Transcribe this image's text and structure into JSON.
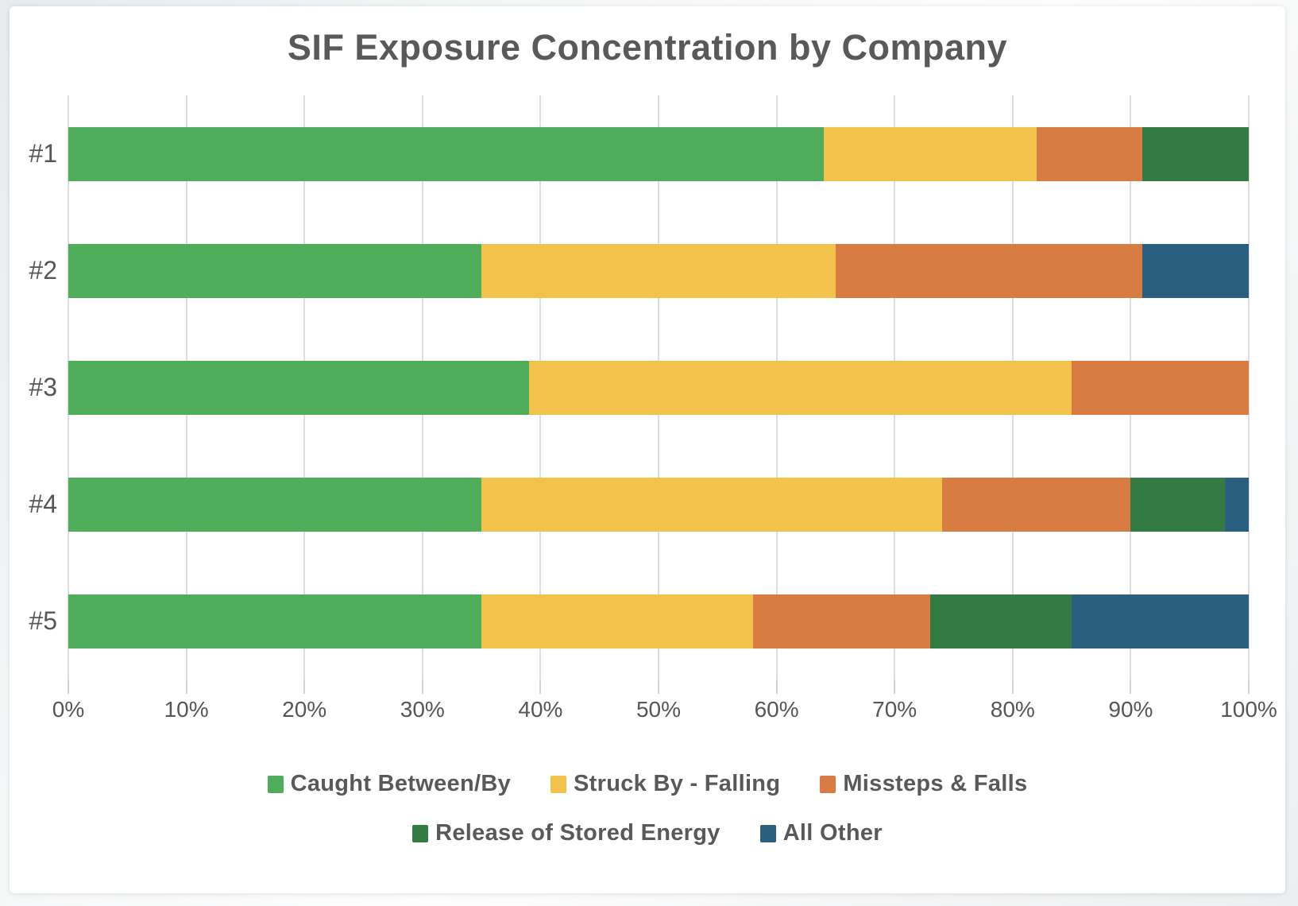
{
  "chart_data": {
    "type": "bar",
    "orientation": "horizontal",
    "stacked": true,
    "title": "SIF Exposure Concentration by Company",
    "categories": [
      "#1",
      "#2",
      "#3",
      "#4",
      "#5"
    ],
    "series": [
      {
        "name": "Caught Between/By",
        "color": "#4fad5c",
        "values": [
          64,
          35,
          39,
          35,
          35
        ]
      },
      {
        "name": "Struck By - Falling",
        "color": "#f2c24a",
        "values": [
          18,
          30,
          46,
          39,
          23
        ]
      },
      {
        "name": "Missteps & Falls",
        "color": "#d87c43",
        "values": [
          9,
          26,
          15,
          16,
          15
        ]
      },
      {
        "name": "Release of Stored Energy",
        "color": "#347a45",
        "values": [
          9,
          0,
          0,
          8,
          12
        ]
      },
      {
        "name": "All Other",
        "color": "#2b5f80",
        "values": [
          0,
          9,
          0,
          2,
          15
        ]
      }
    ],
    "xlabel": "",
    "ylabel": "",
    "xlim": [
      0,
      100
    ],
    "x_ticks": [
      "0%",
      "10%",
      "20%",
      "30%",
      "40%",
      "50%",
      "60%",
      "70%",
      "80%",
      "90%",
      "100%"
    ],
    "grid": "vertical",
    "legend_position": "bottom",
    "legend_rows": [
      [
        "Caught Between/By",
        "Struck By - Falling",
        "Missteps & Falls"
      ],
      [
        "Release of Stored Energy",
        "All Other"
      ]
    ]
  }
}
